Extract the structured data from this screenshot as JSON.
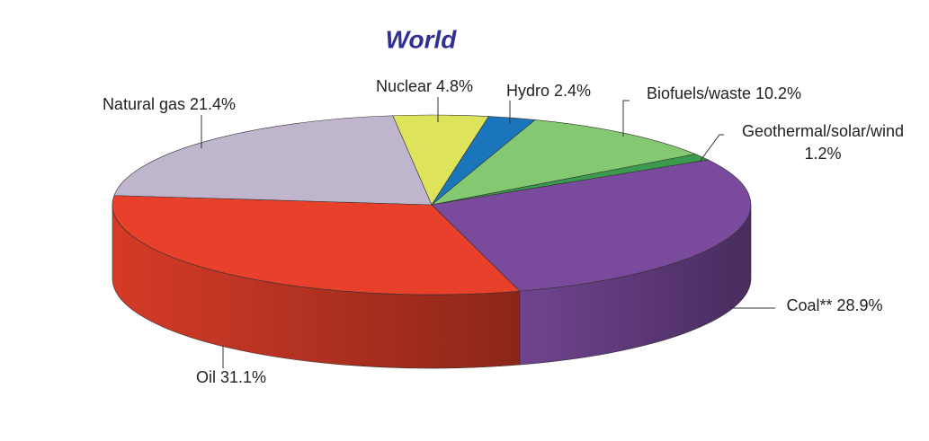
{
  "chart_data": {
    "type": "pie",
    "title": "World",
    "categories": [
      "Nuclear",
      "Hydro",
      "Biofuels/waste",
      "Geothermal/solar/wind",
      "Coal**",
      "Oil",
      "Natural gas"
    ],
    "values": [
      4.8,
      2.4,
      10.2,
      1.2,
      28.9,
      31.1,
      21.4
    ],
    "value_labels": [
      "4.8%",
      "2.4%",
      "10.2%",
      "1.2%",
      "28.9%",
      "31.1%",
      "21.4%"
    ],
    "colors": [
      "#dde35b",
      "#1b75bb",
      "#85c872",
      "#3a9a4d",
      "#7a4a9c",
      "#e8402a",
      "#bfb5cc"
    ]
  }
}
